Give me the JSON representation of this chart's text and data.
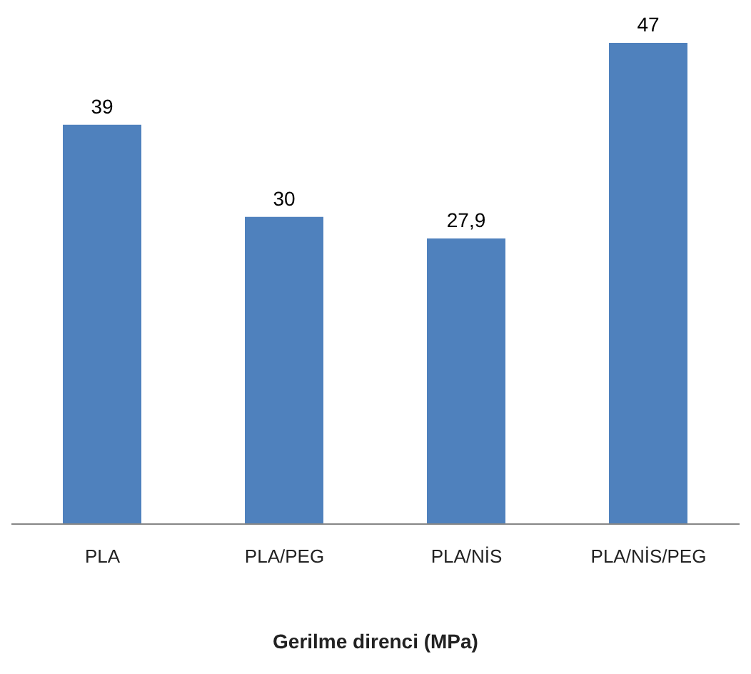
{
  "chart_data": {
    "type": "bar",
    "xlabel": "Gerilme direnci (MPa)",
    "categories": [
      "PLA",
      "PLA/PEG",
      "PLA/NİS",
      "PLA/NİS/PEG"
    ],
    "values": [
      39,
      30,
      27.9,
      47
    ],
    "value_labels": [
      "39",
      "30",
      "27,9",
      "47"
    ],
    "color": "#4f81bd"
  }
}
